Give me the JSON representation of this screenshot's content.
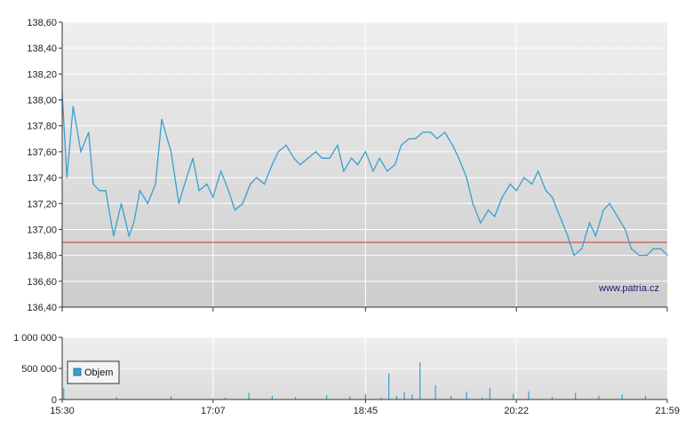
{
  "watermark": "www.patria.cz",
  "chart_data": [
    {
      "type": "line",
      "title": "",
      "xlabel": "",
      "ylabel": "",
      "ylim": [
        136.4,
        138.6
      ],
      "y_ticks": [
        "136,40",
        "136,60",
        "136,80",
        "137,00",
        "137,20",
        "137,40",
        "137,60",
        "137,80",
        "138,00",
        "138,20",
        "138,40",
        "138,60"
      ],
      "x_ticks": [
        "15:30",
        "17:07",
        "18:45",
        "20:22",
        "21:59"
      ],
      "grid": true,
      "reference_line": 136.9,
      "colors": {
        "line": "#3a9fd0",
        "reference": "#c0392b",
        "background_top": "#efefef",
        "background_bottom": "#cfcfcf"
      },
      "series": [
        {
          "x": [
            "15:30",
            "15:33",
            "15:37",
            "15:42",
            "15:47",
            "15:50",
            "15:54",
            "15:58",
            "16:03",
            "16:08",
            "16:13",
            "16:16",
            "16:20",
            "16:25",
            "16:30",
            "16:34",
            "16:40",
            "16:45",
            "16:50",
            "16:54",
            "16:58",
            "17:03",
            "17:07",
            "17:12",
            "17:17",
            "17:21",
            "17:26",
            "17:31",
            "17:35",
            "17:40",
            "17:45",
            "17:49",
            "17:54",
            "17:59",
            "18:03",
            "18:08",
            "18:13",
            "18:17",
            "18:22",
            "18:27",
            "18:31",
            "18:36",
            "18:40",
            "18:45",
            "18:50",
            "18:54",
            "18:59",
            "19:04",
            "19:08",
            "19:13",
            "19:17",
            "19:22",
            "19:27",
            "19:31",
            "19:36",
            "19:41",
            "19:45",
            "19:50",
            "19:54",
            "19:59",
            "20:04",
            "20:08",
            "20:13",
            "20:18",
            "20:22",
            "20:27",
            "20:32",
            "20:36",
            "20:41",
            "20:45",
            "20:50",
            "20:55",
            "20:59",
            "21:04",
            "21:09",
            "21:13",
            "21:18",
            "21:22",
            "21:27",
            "21:32",
            "21:36",
            "21:41",
            "21:46",
            "21:50",
            "21:55",
            "21:59"
          ],
          "values": [
            138.05,
            137.4,
            137.95,
            137.6,
            137.75,
            137.35,
            137.3,
            137.3,
            136.95,
            137.2,
            136.95,
            137.05,
            137.3,
            137.2,
            137.35,
            137.85,
            137.6,
            137.2,
            137.4,
            137.55,
            137.3,
            137.35,
            137.25,
            137.45,
            137.3,
            137.15,
            137.2,
            137.35,
            137.4,
            137.35,
            137.5,
            137.6,
            137.65,
            137.55,
            137.5,
            137.55,
            137.6,
            137.55,
            137.55,
            137.65,
            137.45,
            137.55,
            137.5,
            137.6,
            137.45,
            137.55,
            137.45,
            137.5,
            137.65,
            137.7,
            137.7,
            137.75,
            137.75,
            137.7,
            137.75,
            137.65,
            137.55,
            137.4,
            137.2,
            137.05,
            137.15,
            137.1,
            137.25,
            137.35,
            137.3,
            137.4,
            137.35,
            137.45,
            137.3,
            137.25,
            137.1,
            136.95,
            136.8,
            136.85,
            137.05,
            136.95,
            137.15,
            137.2,
            137.1,
            137.0,
            136.85,
            136.8,
            136.8,
            136.85,
            136.85,
            136.8
          ]
        }
      ]
    },
    {
      "type": "bar",
      "title": "",
      "ylim": [
        0,
        1000000
      ],
      "y_ticks": [
        "0",
        "500 000",
        "1 000 000"
      ],
      "x_ticks": [
        "15:30",
        "17:07",
        "18:45",
        "20:22",
        "21:59"
      ],
      "grid": true,
      "legend": "top-left",
      "colors": {
        "bar": "#3a9fd0"
      },
      "series": [
        {
          "name": "Objem",
          "x": [
            "15:31",
            "16:05",
            "16:40",
            "17:15",
            "17:30",
            "17:45",
            "18:00",
            "18:20",
            "18:35",
            "18:45",
            "18:55",
            "19:00",
            "19:05",
            "19:10",
            "19:15",
            "19:20",
            "19:30",
            "19:40",
            "19:50",
            "20:00",
            "20:05",
            "20:20",
            "20:30",
            "20:45",
            "21:00",
            "21:15",
            "21:30",
            "21:45"
          ],
          "values": [
            180000,
            40000,
            50000,
            30000,
            110000,
            60000,
            40000,
            70000,
            50000,
            90000,
            30000,
            420000,
            60000,
            120000,
            80000,
            600000,
            230000,
            60000,
            120000,
            30000,
            180000,
            90000,
            130000,
            40000,
            110000,
            60000,
            80000,
            60000
          ]
        }
      ]
    }
  ]
}
